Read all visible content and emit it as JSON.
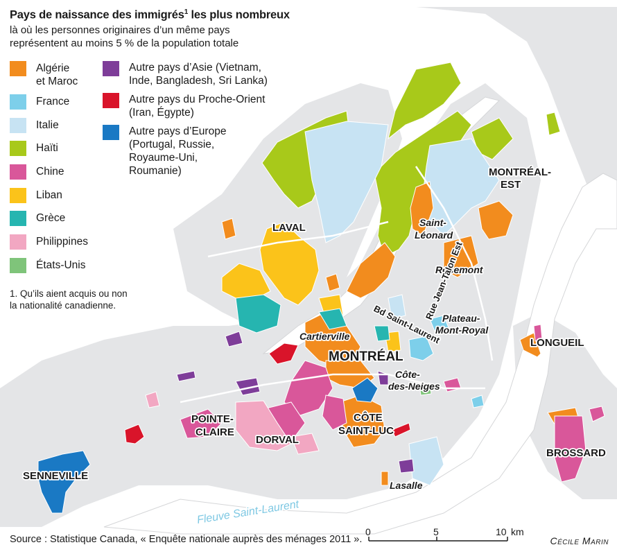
{
  "title": "Pays de naissance des immigrés",
  "title_note": "1",
  "title_rest": " les plus nombreux",
  "subtitle_line1": "là où les personnes originaires d’un même pays",
  "subtitle_line2": "représentent au moins 5 % de la population totale",
  "legend_left": [
    {
      "label": "Algérie",
      "label2": "et Maroc",
      "color": "#f28c1e"
    },
    {
      "label": "France",
      "label2": "",
      "color": "#7dcfea"
    },
    {
      "label": "Italie",
      "label2": "",
      "color": "#c7e3f3"
    },
    {
      "label": "Haïti",
      "label2": "",
      "color": "#a8c91a"
    },
    {
      "label": "Chine",
      "label2": "",
      "color": "#d9579a"
    },
    {
      "label": "Liban",
      "label2": "",
      "color": "#fbc31a"
    },
    {
      "label": "Grèce",
      "label2": "",
      "color": "#26b5b0"
    },
    {
      "label": "Philippines",
      "label2": "",
      "color": "#f2a7c2"
    },
    {
      "label": "États-Unis",
      "label2": "",
      "color": "#7fc47a"
    }
  ],
  "legend_right": [
    {
      "lines": [
        "Autre pays d’Asie (Vietnam,",
        "Inde, Bangladesh, Sri Lanka)"
      ],
      "color": "#7e3d99"
    },
    {
      "lines": [
        "Autre pays du Proche-Orient",
        "(Iran, Égypte)"
      ],
      "color": "#d9142a"
    },
    {
      "lines": [
        "Autre pays d’Europe",
        "(Portugal, Russie,",
        "Royaume-Uni,",
        "Roumanie)"
      ],
      "color": "#1a79c4"
    }
  ],
  "footnote": "1. Qu’ils aient acquis ou non la nationalité canadienne.",
  "places": {
    "laval": "LAVAL",
    "montreal_est_1": "MONTRÉAL-",
    "montreal_est_2": "EST",
    "saint_leonard_1": "Saint-",
    "saint_leonard_2": "Léonard",
    "rosemont": "Rosemont",
    "rue_jean_talon": "Rue Jean-Talon Est",
    "bd_saint_laurent": "Bd Saint-Laurent",
    "plateau_1": "Plateau-",
    "plateau_2": "Mont-Royal",
    "cartierville": "Cartierville",
    "montreal": "MONTRÉAL",
    "cote_neiges_1": "Côte-",
    "cote_neiges_2": "des-Neiges",
    "longueil": "LONGUEIL",
    "pointe_claire_1": "POINTE-",
    "pointe_claire_2": "CLAIRE",
    "dorval": "DORVAL",
    "cote_st_luc_1": "CÔTE",
    "cote_st_luc_2": "SAINT-LUC",
    "brossard": "BROSSARD",
    "senneville": "SENNEVILLE",
    "lasalle": "Lasalle",
    "fleuve": "Fleuve Saint-Laurent"
  },
  "scale": {
    "t0": "0",
    "t5": "5",
    "t10": "10",
    "unit": "km"
  },
  "source": "Source : Statistique Canada, « Enquête nationale auprès des ménages 2011 ».",
  "credit": "Cécile Marin",
  "colors": {
    "land": "#e8e9ea",
    "water": "#ffffff",
    "roads": "#ffffff"
  }
}
